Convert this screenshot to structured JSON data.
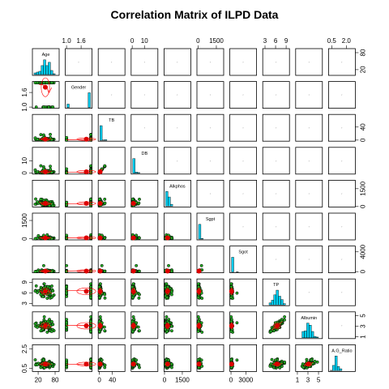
{
  "title": "Correlation Matrix of ILPD Data",
  "chart_data": {
    "type": "scatter-matrix",
    "title": "Correlation Matrix of ILPD Data",
    "variables": [
      "Age",
      "Gender",
      "TB",
      "DB",
      "Alkphos",
      "Sgpt",
      "Sgot",
      "TP",
      "Albumin",
      "A.G_Ratio"
    ],
    "diagonal_labels": [
      "Age",
      "Gender",
      "TB",
      "DB",
      "Alkphos",
      "Sgpt",
      "Sgot",
      "TP",
      "Albumin",
      "A.G_Ratio"
    ],
    "ranges": [
      [
        4,
        90
      ],
      [
        1,
        2
      ],
      [
        0.4,
        75
      ],
      [
        0.1,
        20
      ],
      [
        63,
        2110
      ],
      [
        10,
        2000
      ],
      [
        10,
        4929
      ],
      [
        2.7,
        9.6
      ],
      [
        0.9,
        5.5
      ],
      [
        0.3,
        2.8
      ]
    ],
    "top_axis_ticks": [
      {
        "var": 1,
        "ticks": [
          1.0,
          1.6
        ],
        "labels": [
          "1.0",
          "1.6"
        ]
      },
      {
        "var": 3,
        "ticks": [
          0,
          10
        ],
        "labels": [
          "0",
          "10"
        ]
      },
      {
        "var": 5,
        "ticks": [
          0,
          1500
        ],
        "labels": [
          "0",
          "1500"
        ]
      },
      {
        "var": 7,
        "ticks": [
          3,
          6,
          9
        ],
        "labels": [
          "3",
          "6",
          "9"
        ]
      },
      {
        "var": 9,
        "ticks": [
          0.5,
          2.0
        ],
        "labels": [
          "0.5",
          "2.0"
        ]
      }
    ],
    "bottom_axis_ticks": [
      {
        "var": 0,
        "ticks": [
          20,
          80
        ],
        "labels": [
          "20",
          "80"
        ]
      },
      {
        "var": 2,
        "ticks": [
          0,
          40
        ],
        "labels": [
          "0",
          "40"
        ]
      },
      {
        "var": 4,
        "ticks": [
          0,
          1500
        ],
        "labels": [
          "0",
          "1500"
        ]
      },
      {
        "var": 6,
        "ticks": [
          0,
          3000
        ],
        "labels": [
          "0",
          "3000"
        ]
      },
      {
        "var": 8,
        "ticks": [
          1,
          3,
          5
        ],
        "labels": [
          "1",
          "3",
          "5"
        ]
      }
    ],
    "left_axis_ticks": [
      {
        "var": 1,
        "ticks": [
          1.0,
          1.6
        ],
        "labels": [
          "1.0",
          "1.6"
        ]
      },
      {
        "var": 3,
        "ticks": [
          0,
          10
        ],
        "labels": [
          "0",
          "10"
        ]
      },
      {
        "var": 5,
        "ticks": [
          0,
          1500
        ],
        "labels": [
          "0",
          "1500"
        ]
      },
      {
        "var": 7,
        "ticks": [
          3,
          6,
          9
        ],
        "labels": [
          "3",
          "6",
          "9"
        ]
      },
      {
        "var": 9,
        "ticks": [
          0.5,
          2.5
        ],
        "labels": [
          "0.5",
          "2.5"
        ]
      }
    ],
    "right_axis_ticks": [
      {
        "var": 0,
        "ticks": [
          20,
          80
        ],
        "labels": [
          "20",
          "80"
        ]
      },
      {
        "var": 2,
        "ticks": [
          0,
          40
        ],
        "labels": [
          "0",
          "40"
        ]
      },
      {
        "var": 4,
        "ticks": [
          0,
          1500
        ],
        "labels": [
          "0",
          "1500"
        ]
      },
      {
        "var": 6,
        "ticks": [
          0,
          4000
        ],
        "labels": [
          "0",
          "4000"
        ]
      },
      {
        "var": 8,
        "ticks": [
          1,
          3,
          5
        ],
        "labels": [
          "1",
          "3",
          "5"
        ]
      }
    ],
    "upper_panel_text": "r",
    "colors": {
      "point_fill": "#22aa22",
      "point_edge": "#000000",
      "centroid": "#dd0000",
      "smooth_line": "#ff0000",
      "histogram_fill": "#00ccee",
      "panel_border": "#000000"
    },
    "grid": false,
    "legend": "none"
  }
}
